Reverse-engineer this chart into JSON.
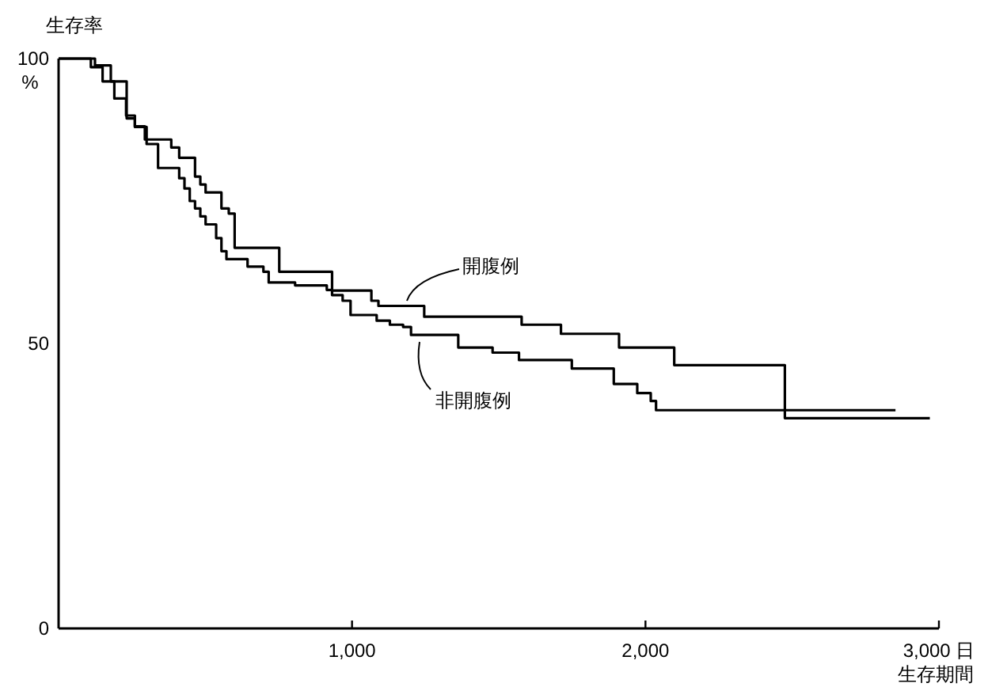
{
  "chart_data": {
    "type": "step",
    "ylabel": "生存率",
    "xlabel": "生存期間",
    "annotations": [
      "%"
    ],
    "xlim": [
      0,
      3000
    ],
    "ylim": [
      0,
      100
    ],
    "xticks": [
      {
        "value": 1000,
        "label": "1,000"
      },
      {
        "value": 2000,
        "label": "2,000"
      },
      {
        "value": 3000,
        "label": "3,000 日"
      }
    ],
    "yticks": [
      0,
      50,
      100
    ],
    "grid": false,
    "legend": false,
    "marker": "none",
    "line_style": "solid",
    "series": [
      {
        "name": "開腹例",
        "color": "#000000",
        "x": [
          0,
          124,
          178,
          232,
          260,
          294,
          384,
          411,
          465,
          483,
          501,
          555,
          580,
          600,
          752,
          932,
          1066,
          1090,
          1246,
          1578,
          1712,
          1910,
          2098,
          2475,
          2969
        ],
        "values": [
          100,
          98.8,
          96,
          89.5,
          88.1,
          85.8,
          84.4,
          82.6,
          79.3,
          77.9,
          76.5,
          73.7,
          72.8,
          66.8,
          62.6,
          59.3,
          57.5,
          56.6,
          54.7,
          53.3,
          51.7,
          49.3,
          46.2,
          36.9,
          36.9
        ]
      },
      {
        "name": "非開腹例",
        "color": "#000000",
        "x": [
          0,
          110,
          150,
          190,
          230,
          260,
          300,
          339,
          411,
          429,
          447,
          465,
          483,
          501,
          537,
          555,
          572,
          644,
          698,
          716,
          806,
          914,
          932,
          968,
          995,
          1084,
          1129,
          1174,
          1201,
          1362,
          1479,
          1569,
          1749,
          1892,
          1972,
          2018,
          2036,
          2852
        ],
        "values": [
          100,
          98.5,
          96,
          93,
          90,
          88,
          85,
          80.8,
          79,
          77.2,
          75,
          73.7,
          72.3,
          70.9,
          68.5,
          66.2,
          64.8,
          63.5,
          62.6,
          60.7,
          60.2,
          59.4,
          58.5,
          57.5,
          55,
          54,
          53.3,
          52.9,
          51.5,
          49.3,
          48.4,
          47.1,
          45.6,
          42.9,
          41.3,
          39.9,
          38.3,
          38.3
        ]
      }
    ]
  }
}
